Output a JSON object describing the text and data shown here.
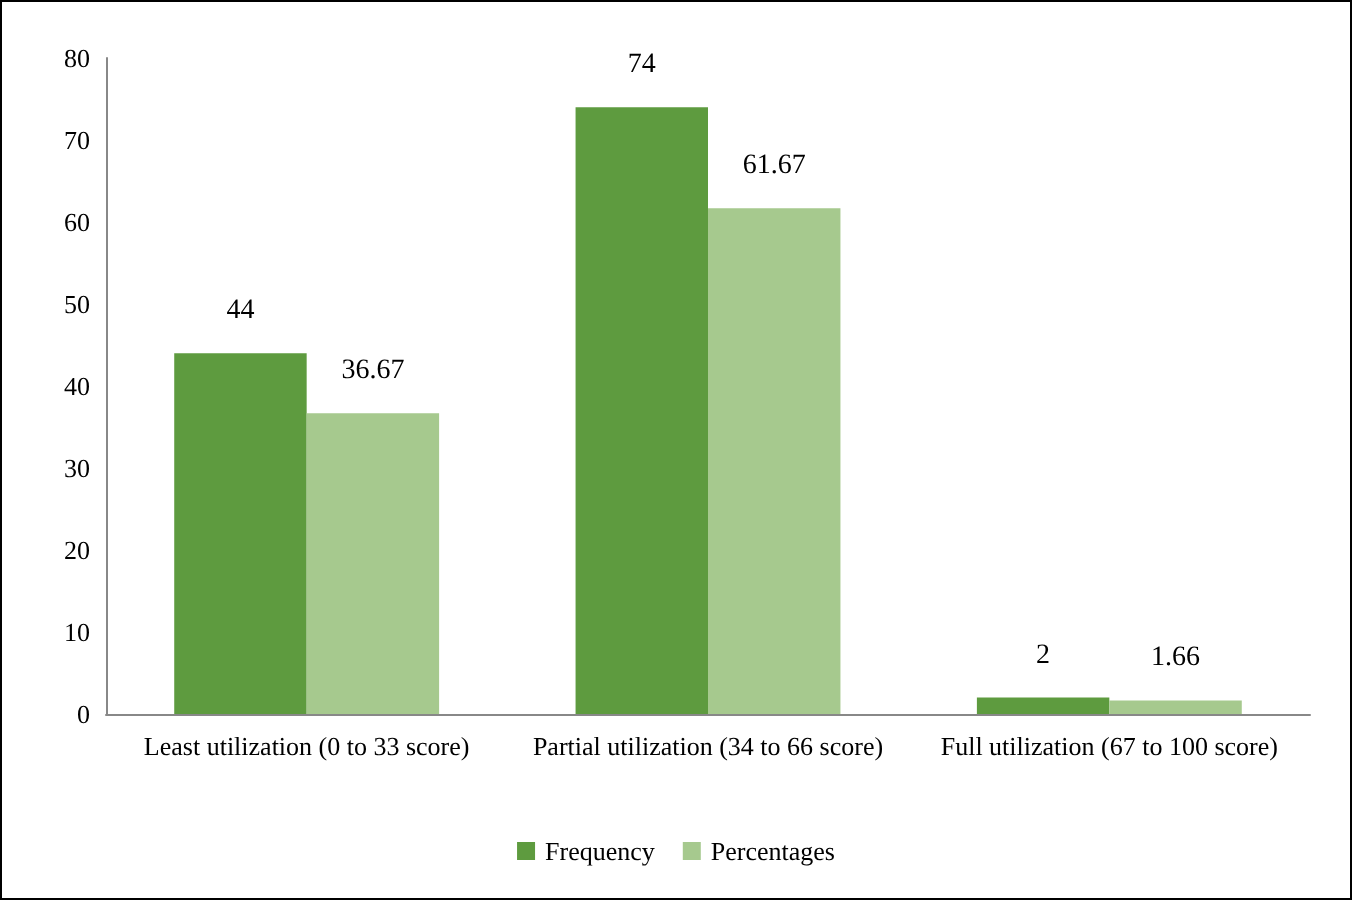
{
  "chart_data": {
    "type": "bar",
    "categories": [
      "Least utilization (0 to 33 score)",
      "Partial utilization (34 to 66 score)",
      "Full utilization (67 to 100 score)"
    ],
    "series": [
      {
        "name": "Frequency",
        "color": "#5e9b3f",
        "values": [
          44,
          74,
          2
        ]
      },
      {
        "name": "Percentages",
        "color": "#a6c98e",
        "values": [
          36.67,
          61.67,
          1.66
        ]
      }
    ],
    "ylim": [
      0,
      80
    ],
    "yticks": [
      0,
      10,
      20,
      30,
      40,
      50,
      60,
      70,
      80
    ],
    "grid": false,
    "legend": "bottom",
    "data_labels": true
  }
}
